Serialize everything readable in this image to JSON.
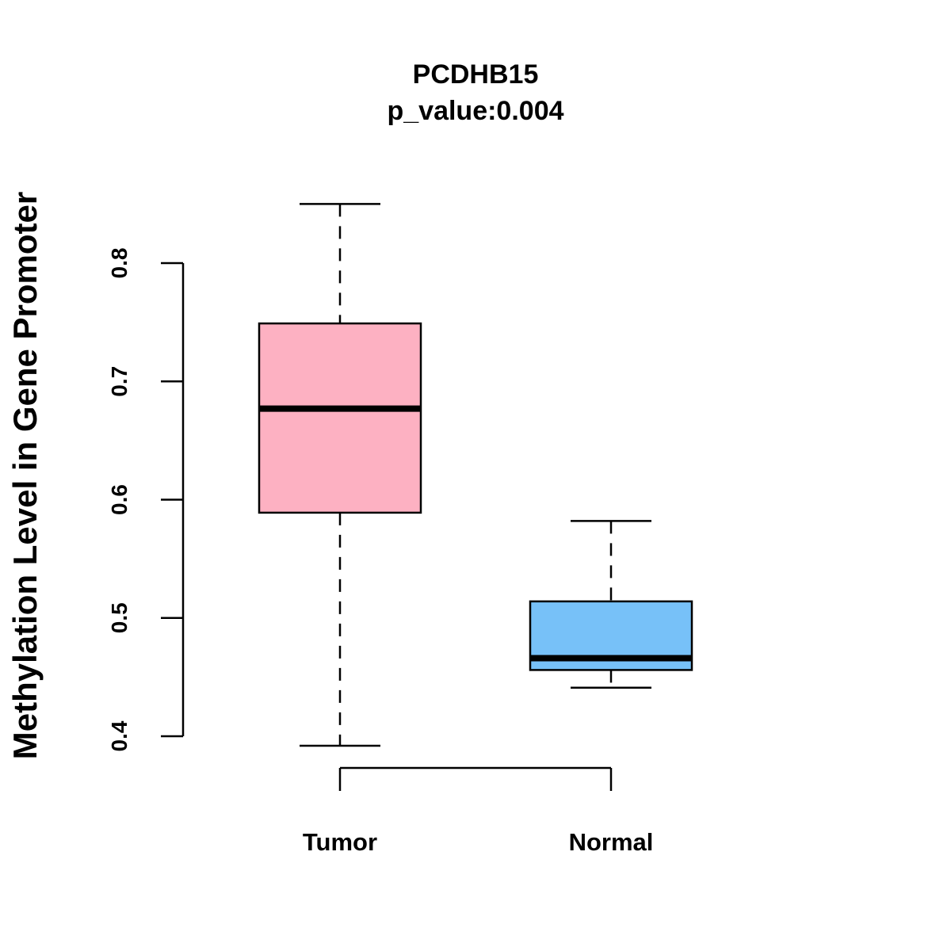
{
  "chart_data": {
    "type": "boxplot",
    "title": "PCDHB15",
    "subtitle": "p_value:0.004",
    "xlabel": "",
    "ylabel": "Methylation Level in Gene Promoter",
    "ylim": [
      0.4,
      0.8
    ],
    "yticks": [
      "0.4",
      "0.5",
      "0.6",
      "0.7",
      "0.8"
    ],
    "grid": false,
    "categories": [
      "Tumor",
      "Normal"
    ],
    "series": [
      {
        "name": "Tumor",
        "color": "#FDB1C2",
        "whisker_low": 0.392,
        "q1": 0.589,
        "median": 0.677,
        "q3": 0.749,
        "whisker_high": 0.85
      },
      {
        "name": "Normal",
        "color": "#77C1F8",
        "whisker_low": 0.441,
        "q1": 0.456,
        "median": 0.466,
        "q3": 0.514,
        "whisker_high": 0.582
      }
    ]
  }
}
